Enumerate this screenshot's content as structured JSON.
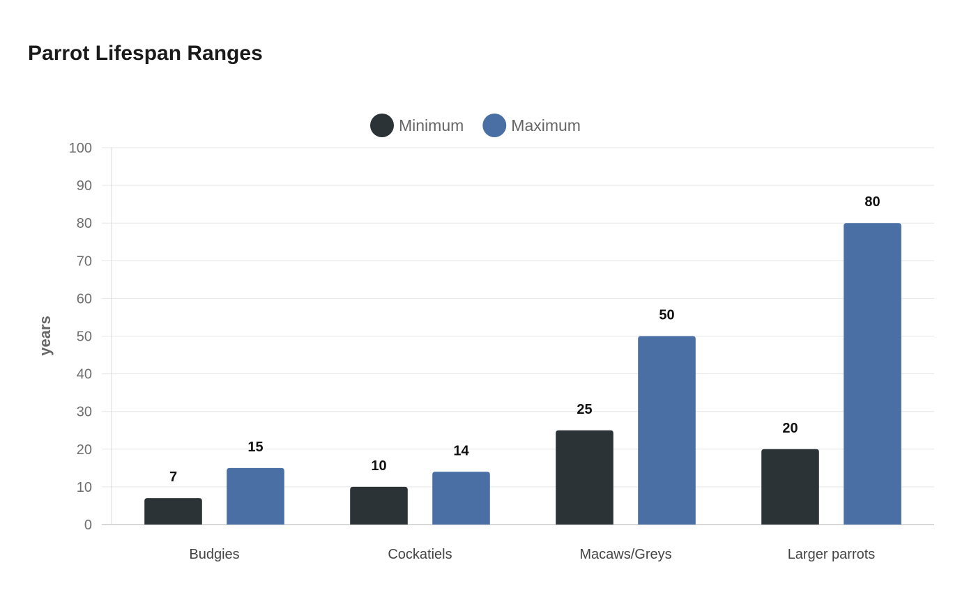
{
  "chart_data": {
    "type": "bar",
    "title": "Parrot Lifespan Ranges",
    "xlabel": "",
    "ylabel": "years",
    "ylim": [
      0,
      100
    ],
    "yticks": [
      0,
      10,
      20,
      30,
      40,
      50,
      60,
      70,
      80,
      90,
      100
    ],
    "categories": [
      "Budgies",
      "Cockatiels",
      "Macaws/Greys",
      "Larger parrots"
    ],
    "series": [
      {
        "name": "Minimum",
        "values": [
          7,
          10,
          25,
          20
        ],
        "color": "#2b3336"
      },
      {
        "name": "Maximum",
        "values": [
          15,
          14,
          50,
          80
        ],
        "color": "#4a6fa5"
      }
    ],
    "legend_position": "top-center",
    "grid": true,
    "data_labels": true
  }
}
